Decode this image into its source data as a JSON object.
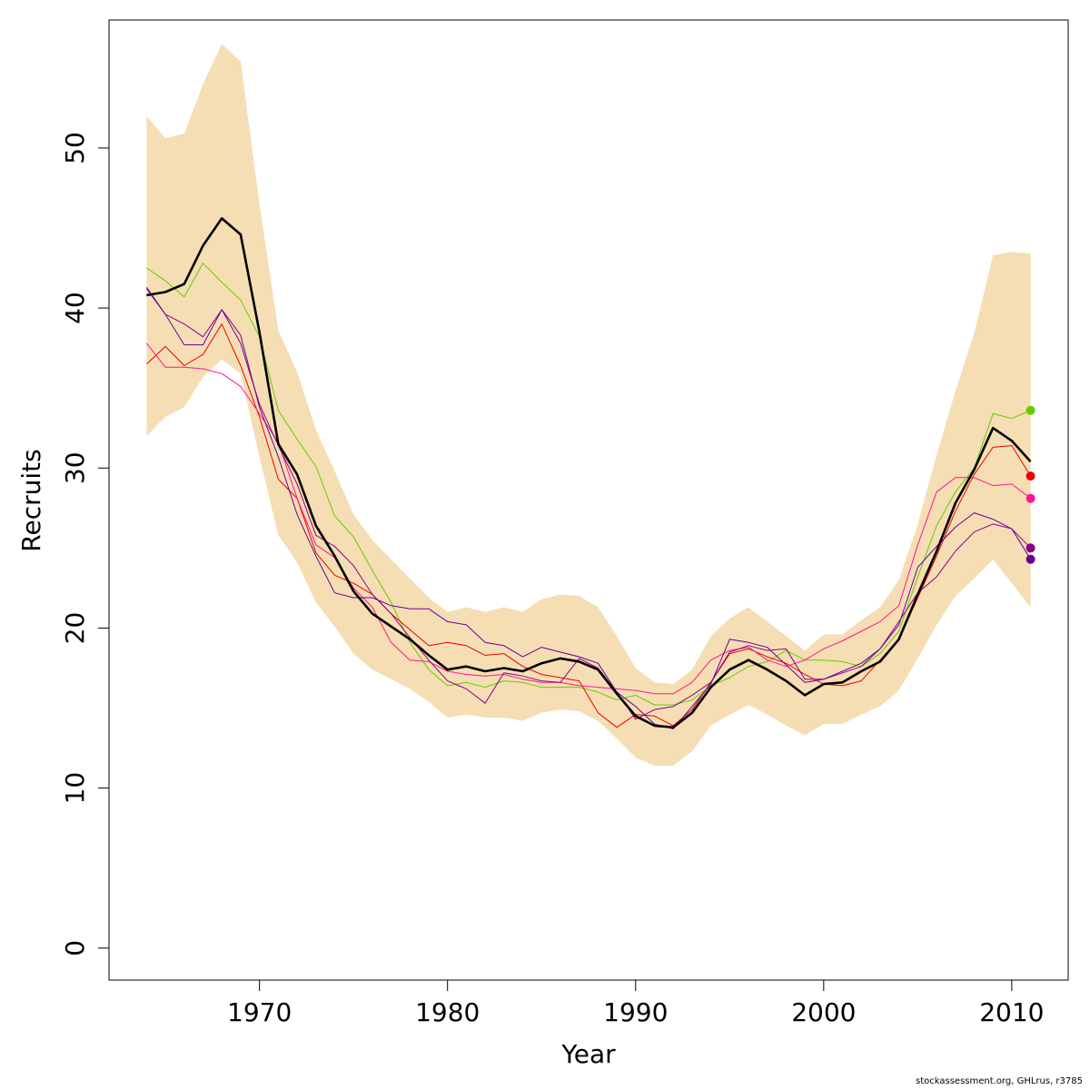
{
  "chart_data": {
    "type": "line",
    "xlabel": "Year",
    "ylabel": "Recruits",
    "xlim": [
      1962,
      2013
    ],
    "ylim": [
      -2,
      58
    ],
    "x_ticks": [
      1970,
      1980,
      1990,
      2000,
      2010
    ],
    "y_ticks": [
      0,
      10,
      20,
      30,
      40,
      50
    ],
    "x": [
      1964,
      1965,
      1966,
      1967,
      1968,
      1969,
      1970,
      1971,
      1972,
      1973,
      1974,
      1975,
      1976,
      1977,
      1978,
      1979,
      1980,
      1981,
      1982,
      1983,
      1984,
      1985,
      1986,
      1987,
      1988,
      1989,
      1990,
      1991,
      1992,
      1993,
      1994,
      1995,
      1996,
      1997,
      1998,
      1999,
      2000,
      2001,
      2002,
      2003,
      2004,
      2005,
      2006,
      2007,
      2008,
      2009,
      2010,
      2011
    ],
    "band": {
      "color": "#f5deb3",
      "upper": [
        52,
        50.6,
        50.9,
        54.0,
        56.5,
        55.4,
        46.5,
        38.6,
        36.0,
        32.4,
        29.8,
        27.1,
        25.5,
        24.3,
        23.1,
        21.9,
        21.0,
        21.3,
        21.0,
        21.3,
        21.0,
        21.8,
        22.1,
        22.0,
        21.3,
        19.5,
        17.5,
        16.6,
        16.5,
        17.4,
        19.5,
        20.6,
        21.3,
        20.4,
        19.5,
        18.6,
        19.6,
        19.6,
        20.5,
        21.3,
        23.0,
        26.5,
        30.8,
        34.8,
        38.4,
        43.3,
        43.5,
        43.4
      ],
      "lower": [
        32,
        33.2,
        33.8,
        35.7,
        36.8,
        35.9,
        30.7,
        25.8,
        24.1,
        21.6,
        20.1,
        18.4,
        17.4,
        16.8,
        16.2,
        15.4,
        14.4,
        14.6,
        14.4,
        14.4,
        14.2,
        14.7,
        14.9,
        14.8,
        14.2,
        13.1,
        11.9,
        11.4,
        11.4,
        12.3,
        13.9,
        14.6,
        15.2,
        14.6,
        13.9,
        13.3,
        14.0,
        14.0,
        14.6,
        15.1,
        16.1,
        18.1,
        20.2,
        22.0,
        23.1,
        24.3,
        22.8,
        21.3
      ]
    },
    "series": [
      {
        "color": "#000000",
        "width": 2.6,
        "values": [
          40.8,
          41.0,
          41.5,
          43.9,
          45.6,
          44.6,
          38.5,
          31.5,
          29.6,
          26.4,
          24.5,
          22.3,
          20.9,
          20.1,
          19.3,
          18.3,
          17.4,
          17.6,
          17.3,
          17.5,
          17.3,
          17.8,
          18.1,
          17.9,
          17.4,
          15.9,
          14.5,
          13.9,
          13.8,
          14.7,
          16.3,
          17.4,
          18.0,
          17.4,
          16.7,
          15.8,
          16.5,
          16.6,
          17.3,
          17.9,
          19.3,
          22.1,
          24.8,
          27.8,
          29.9,
          32.5,
          31.7,
          30.4
        ]
      },
      {
        "color": "#66cc00",
        "width": 1.0,
        "end_point": true,
        "values": [
          42.5,
          41.7,
          40.7,
          42.8,
          41.6,
          40.5,
          38.2,
          33.6,
          31.8,
          30.1,
          27.0,
          25.7,
          23.6,
          21.6,
          19.1,
          17.4,
          16.4,
          16.6,
          16.3,
          16.7,
          16.6,
          16.3,
          16.3,
          16.3,
          16.0,
          15.5,
          15.8,
          15.2,
          15.2,
          15.5,
          16.4,
          16.9,
          17.6,
          17.9,
          18.6,
          18.0,
          18.0,
          17.9,
          17.6,
          18.4,
          19.8,
          23.2,
          26.4,
          28.5,
          30.0,
          33.4,
          33.1,
          33.6
        ]
      },
      {
        "color": "#ee0000",
        "width": 1.0,
        "end_point": true,
        "values": [
          36.5,
          37.6,
          36.4,
          37.1,
          39.0,
          36.4,
          33.2,
          29.3,
          28.1,
          24.7,
          23.3,
          22.8,
          22.1,
          20.9,
          19.9,
          18.9,
          19.1,
          18.9,
          18.3,
          18.4,
          17.6,
          17.1,
          16.9,
          16.7,
          14.7,
          13.8,
          14.6,
          14.5,
          13.9,
          14.9,
          16.6,
          18.4,
          18.7,
          18.2,
          17.8,
          17.1,
          16.5,
          16.4,
          16.7,
          18.0,
          19.3,
          21.9,
          24.5,
          27.3,
          29.6,
          31.3,
          31.4,
          29.5
        ]
      },
      {
        "color": "#ff1493",
        "width": 1.0,
        "end_point": true,
        "values": [
          37.8,
          36.3,
          36.3,
          36.2,
          35.9,
          35.1,
          33.4,
          31.6,
          28.1,
          25.2,
          24.4,
          22.5,
          21.3,
          19.1,
          18.0,
          17.9,
          17.3,
          17.1,
          17.0,
          17.1,
          16.8,
          16.6,
          16.6,
          16.4,
          16.3,
          16.2,
          16.1,
          15.9,
          15.9,
          16.6,
          18.0,
          18.6,
          18.8,
          18.0,
          17.6,
          18.0,
          18.7,
          19.2,
          19.8,
          20.4,
          21.4,
          25.2,
          28.5,
          29.4,
          29.4,
          28.9,
          29.0,
          28.1
        ]
      },
      {
        "color": "#8b008b",
        "width": 1.0,
        "end_point": true,
        "values": [
          41.3,
          39.6,
          39.0,
          38.2,
          39.9,
          37.8,
          34.0,
          31.4,
          29.0,
          25.8,
          25.1,
          23.9,
          22.1,
          20.9,
          19.4,
          18.0,
          16.7,
          16.2,
          15.3,
          17.2,
          17.0,
          16.7,
          16.6,
          18.1,
          17.5,
          16.0,
          14.3,
          14.9,
          15.1,
          15.8,
          16.6,
          18.5,
          18.9,
          18.6,
          18.7,
          16.8,
          16.8,
          17.2,
          17.6,
          18.7,
          20.4,
          22.2,
          23.2,
          24.8,
          26.0,
          26.5,
          26.2,
          25.0
        ]
      },
      {
        "color": "#660099",
        "width": 1.0,
        "end_point": true,
        "values": [
          41.2,
          39.6,
          37.7,
          37.7,
          39.9,
          38.3,
          33.8,
          30.7,
          27.1,
          24.5,
          22.2,
          21.9,
          21.9,
          21.4,
          21.2,
          21.2,
          20.4,
          20.2,
          19.1,
          18.9,
          18.2,
          18.8,
          18.5,
          18.2,
          17.8,
          16.0,
          15.1,
          14.0,
          13.7,
          15.1,
          16.5,
          19.3,
          19.1,
          18.8,
          17.7,
          16.6,
          16.8,
          17.3,
          17.8,
          18.7,
          20.2,
          23.8,
          25.1,
          26.3,
          27.2,
          26.8,
          26.2,
          24.3
        ]
      }
    ]
  },
  "footer": {
    "note": "stockassessment.org, GHLrus, r3785"
  }
}
